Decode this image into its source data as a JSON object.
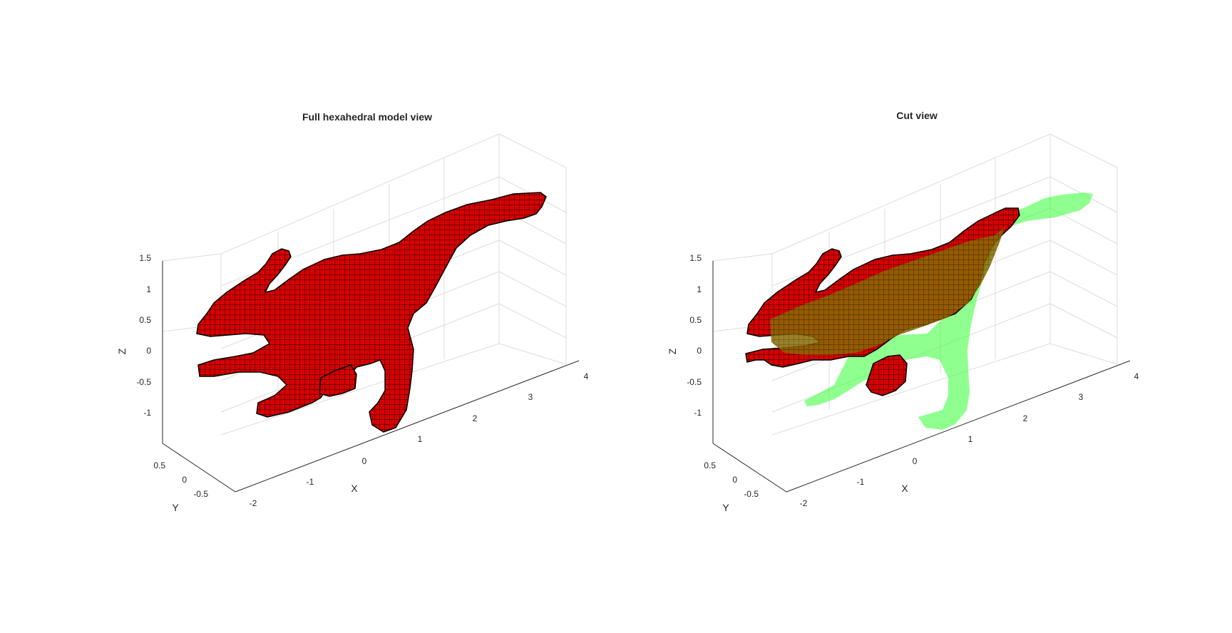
{
  "chart_data": [
    {
      "type": "3d-surface",
      "title": "Full hexahedral model view",
      "xlabel": "X",
      "ylabel": "Y",
      "zlabel": "Z",
      "x_ticks": [
        "-2",
        "-1",
        "0",
        "1",
        "2",
        "3",
        "4"
      ],
      "y_ticks": [
        "-0.5",
        "0",
        "0.5"
      ],
      "z_ticks": [
        "-1",
        "-0.5",
        "0",
        "0.5",
        "1",
        "1.5"
      ],
      "grid": true,
      "series": [
        {
          "color": "#e00000",
          "edge_color": "#000000"
        }
      ]
    },
    {
      "type": "3d-surface",
      "title": "Cut view",
      "xlabel": "X",
      "ylabel": "Y",
      "zlabel": "Z",
      "x_ticks": [
        "-2",
        "-1",
        "0",
        "1",
        "2",
        "3",
        "4"
      ],
      "y_ticks": [
        "-0.5",
        "0",
        "0.5"
      ],
      "z_ticks": [
        "-1",
        "-0.5",
        "0",
        "0.5",
        "1",
        "1.5"
      ],
      "grid": true,
      "series": [
        {
          "color": "#e00000",
          "edge_color": "#000000"
        },
        {
          "color": "#33ff33",
          "opacity": 0.55
        }
      ]
    }
  ]
}
